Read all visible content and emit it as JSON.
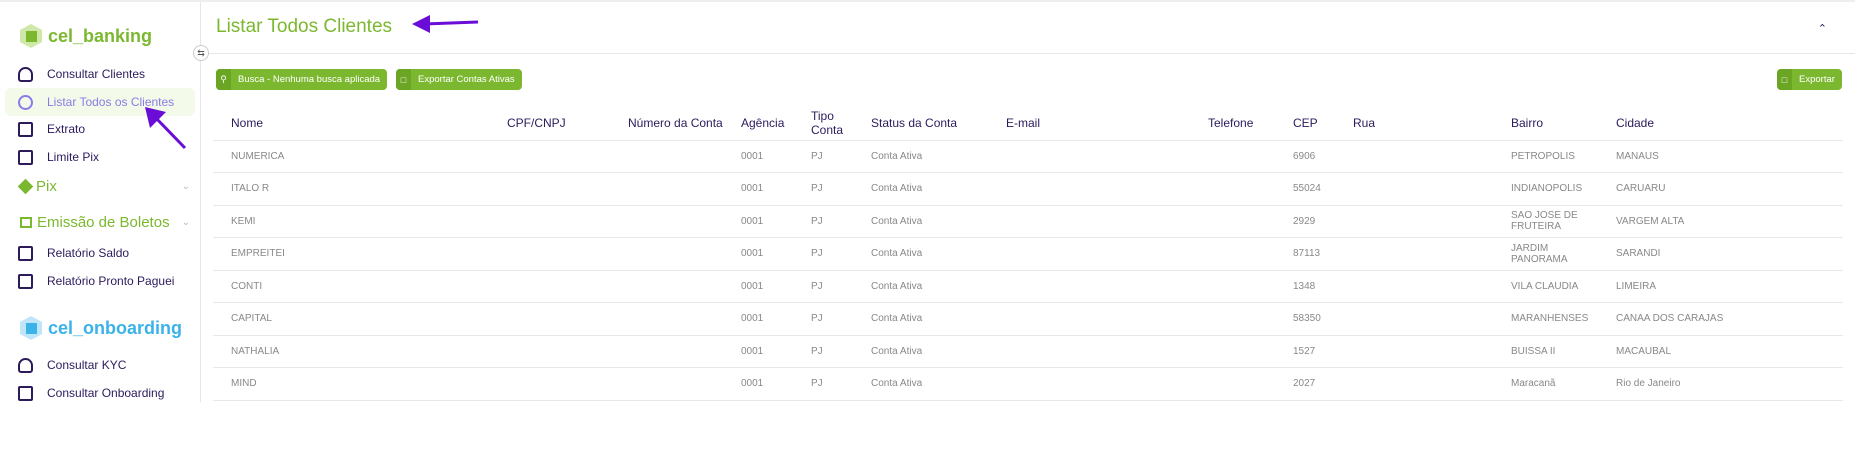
{
  "sidebar": {
    "brand1": "cel_banking",
    "items1": [
      {
        "label": "Consultar Clientes"
      },
      {
        "label": "Listar Todos os Clientes"
      },
      {
        "label": "Extrato"
      },
      {
        "label": "Limite Pix"
      }
    ],
    "group_pix": "Pix",
    "group_boletos": "Emissão de Boletos",
    "items2": [
      {
        "label": "Relatório Saldo"
      },
      {
        "label": "Relatório Pronto Paguei"
      }
    ],
    "brand2": "cel_onboarding",
    "items3": [
      {
        "label": "Consultar KYC"
      },
      {
        "label": "Consultar Onboarding"
      }
    ]
  },
  "header": {
    "title": "Listar Todos Clientes"
  },
  "toolbar": {
    "search_label": "Busca - Nenhuma busca aplicada",
    "export_active_label": "Exportar Contas Ativas",
    "export_label": "Exportar"
  },
  "colors": {
    "accent": "#7cb82f",
    "text": "#2c1a5c",
    "active": "#8b7be8",
    "onboarding": "#3bb3e8",
    "annotation_arrow": "#6a0dd6"
  },
  "table": {
    "columns": [
      "Nome",
      "CPF/CNPJ",
      "Número da Conta",
      "Agência",
      "Tipo Conta",
      "Status da Conta",
      "E-mail",
      "Telefone",
      "CEP",
      "Rua",
      "Bairro",
      "Cidade"
    ],
    "rows": [
      [
        "NUMERICA",
        "",
        "",
        "0001",
        "PJ",
        "Conta Ativa",
        "",
        "",
        "6906",
        "",
        "PETROPOLIS",
        "MANAUS"
      ],
      [
        "ITALO R",
        "",
        "",
        "0001",
        "PJ",
        "Conta Ativa",
        "",
        "",
        "55024",
        "",
        "INDIANOPOLIS",
        "CARUARU"
      ],
      [
        "KEMI",
        "",
        "",
        "0001",
        "PJ",
        "Conta Ativa",
        "",
        "",
        "2929",
        "",
        "SAO JOSE DE FRUTEIRA",
        "VARGEM ALTA"
      ],
      [
        "EMPREITEI",
        "",
        "",
        "0001",
        "PJ",
        "Conta Ativa",
        "",
        "",
        "87113",
        "",
        "JARDIM PANORAMA",
        "SARANDI"
      ],
      [
        "CONTI",
        "",
        "",
        "0001",
        "PJ",
        "Conta Ativa",
        "",
        "",
        "1348",
        "",
        "VILA CLAUDIA",
        "LIMEIRA"
      ],
      [
        "CAPITAL",
        "",
        "",
        "0001",
        "PJ",
        "Conta Ativa",
        "",
        "",
        "58350",
        "",
        "MARANHENSES",
        "CANAA DOS CARAJAS"
      ],
      [
        "NATHALIA",
        "",
        "",
        "0001",
        "PJ",
        "Conta Ativa",
        "",
        "",
        "1527",
        "",
        "BUISSA II",
        "MACAUBAL"
      ],
      [
        "MIND",
        "",
        "",
        "0001",
        "PJ",
        "Conta Ativa",
        "",
        "",
        "2027",
        "",
        "Maracanã",
        "Rio de Janeiro"
      ]
    ]
  }
}
